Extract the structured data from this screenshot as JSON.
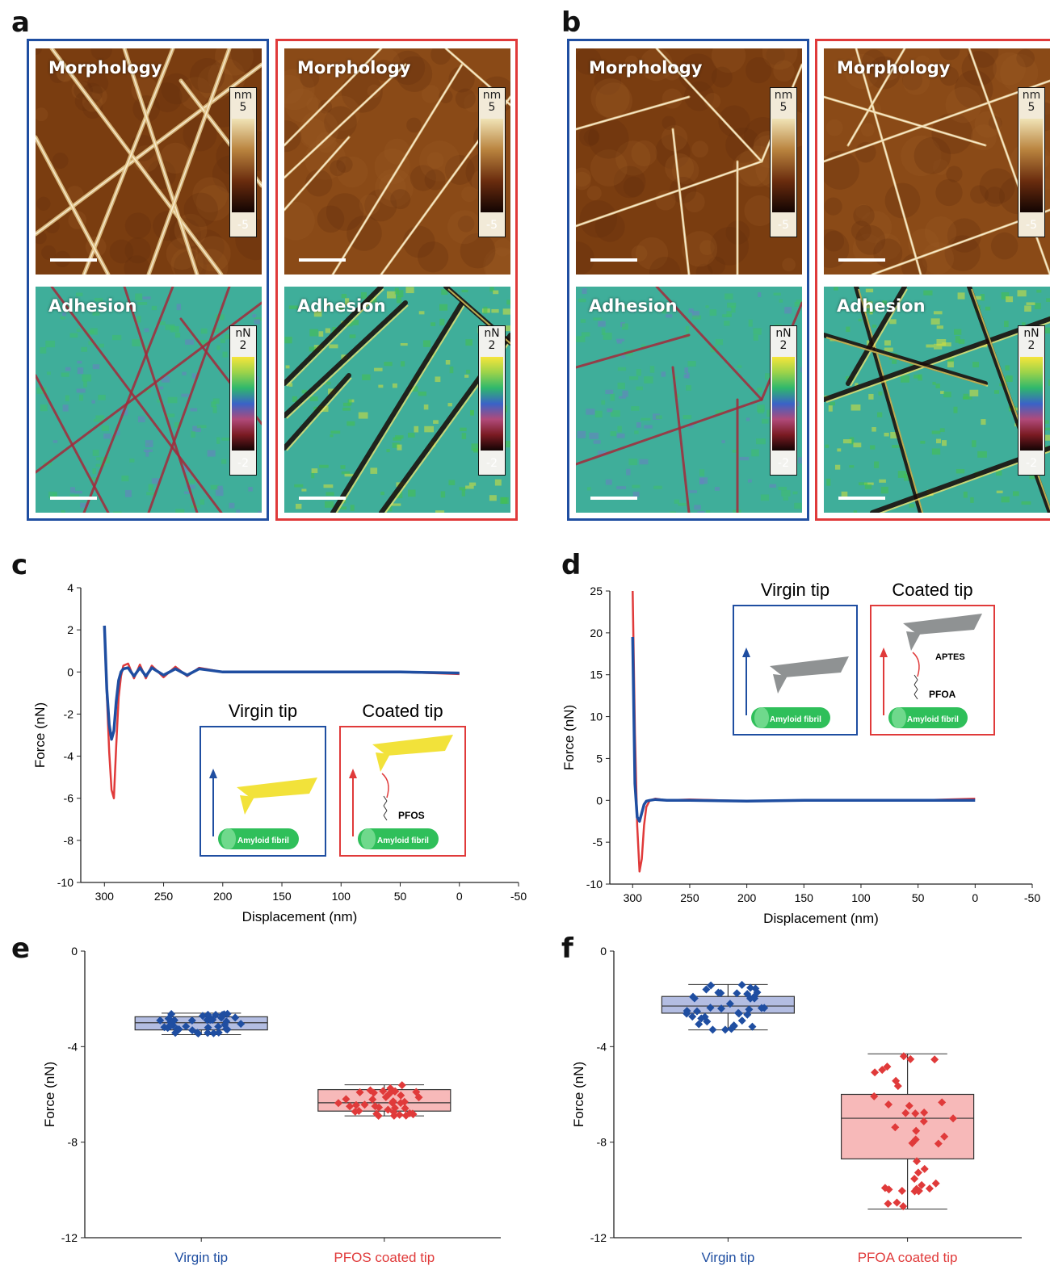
{
  "panels": {
    "a": "a",
    "b": "b",
    "c": "c",
    "d": "d",
    "e": "e",
    "f": "f"
  },
  "afm": {
    "morphology_label": "Morphology",
    "adhesion_label": "Adhesion",
    "morph_cbar": {
      "unit": "nm",
      "top": "5",
      "bottom": "-5"
    },
    "adh_cbar": {
      "unit": "nN",
      "top": "2",
      "bottom": "-2"
    }
  },
  "insets": {
    "virgin_tip": "Virgin tip",
    "coated_tip": "Coated tip",
    "amyloid_fibril": "Amyloid fibril",
    "pfos": "PFOS",
    "pfoa": "PFOA",
    "aptes": "APTES"
  },
  "colors": {
    "blue": "#1f4ea1",
    "red": "#e03a3a",
    "fibril_green": "#2fbf5a",
    "tip_yellow": "#f2e23a",
    "tip_grey": "#8f9293"
  },
  "chart_data": [
    {
      "id": "c",
      "type": "line",
      "xlabel": "Displacement (nm)",
      "ylabel": "Force (nN)",
      "xlim": [
        320,
        -50
      ],
      "ylim": [
        -10,
        4
      ],
      "xticks": [
        300,
        250,
        200,
        150,
        100,
        50,
        0,
        -50
      ],
      "yticks": [
        4,
        2,
        0,
        -2,
        -4,
        -6,
        -8,
        -10
      ],
      "series": [
        {
          "color": "#e03a3a",
          "x": [
            300,
            298,
            296,
            294,
            292,
            290,
            288,
            286,
            284,
            280,
            275,
            270,
            265,
            260,
            250,
            240,
            230,
            220,
            200,
            150,
            100,
            50,
            0
          ],
          "y": [
            2.0,
            -1.0,
            -3.8,
            -5.6,
            -6.0,
            -3.5,
            -1.2,
            -0.2,
            0.3,
            0.4,
            -0.3,
            0.35,
            -0.3,
            0.3,
            -0.25,
            0.25,
            -0.2,
            0.2,
            0.0,
            0.0,
            0.0,
            0.0,
            -0.1
          ]
        },
        {
          "color": "#1f4ea1",
          "x": [
            300,
            298,
            296,
            294,
            292,
            290,
            288,
            286,
            284,
            280,
            275,
            270,
            265,
            260,
            250,
            240,
            230,
            220,
            200,
            150,
            100,
            50,
            0
          ],
          "y": [
            2.2,
            -0.8,
            -2.5,
            -3.2,
            -2.8,
            -1.4,
            -0.4,
            0.0,
            0.15,
            0.2,
            -0.2,
            0.2,
            -0.2,
            0.2,
            -0.15,
            0.15,
            -0.15,
            0.15,
            0.0,
            0.0,
            0.0,
            0.0,
            -0.05
          ]
        }
      ]
    },
    {
      "id": "d",
      "type": "line",
      "xlabel": "Displacement (nm)",
      "ylabel": "Force (nN)",
      "xlim": [
        320,
        -50
      ],
      "ylim": [
        -10,
        25
      ],
      "xticks": [
        300,
        250,
        200,
        150,
        100,
        50,
        0,
        -50
      ],
      "yticks": [
        25,
        20,
        15,
        10,
        5,
        0,
        -5,
        -10
      ],
      "series": [
        {
          "color": "#e03a3a",
          "x": [
            300,
            298,
            296,
            294,
            292,
            290,
            288,
            285,
            280,
            270,
            250,
            200,
            150,
            100,
            50,
            0
          ],
          "y": [
            25,
            8,
            -3,
            -8.5,
            -7.0,
            -3.0,
            -0.8,
            0.0,
            0.2,
            0.0,
            0.1,
            -0.1,
            0.0,
            0.0,
            0.0,
            0.2
          ]
        },
        {
          "color": "#1f4ea1",
          "x": [
            300,
            298,
            296,
            294,
            292,
            290,
            288,
            285,
            280,
            270,
            250,
            200,
            150,
            100,
            50,
            0
          ],
          "y": [
            19.5,
            2,
            -2.0,
            -2.5,
            -1.5,
            -0.5,
            -0.1,
            0.0,
            0.1,
            0.0,
            0.0,
            -0.1,
            0.0,
            0.0,
            0.0,
            0.0
          ]
        }
      ]
    },
    {
      "id": "e",
      "type": "box",
      "ylabel": "Force (nN)",
      "ylim": [
        -12,
        0
      ],
      "yticks": [
        0,
        -4,
        -8,
        -12
      ],
      "categories": [
        "Virgin tip",
        "PFOS coated tip"
      ],
      "boxes": [
        {
          "color": "#1f4ea1",
          "fill": "#b3bde2",
          "min": -3.5,
          "q1": -3.3,
          "median": -3.0,
          "q3": -2.75,
          "max": -2.6
        },
        {
          "color": "#e03a3a",
          "fill": "#f7b9b9",
          "min": -6.9,
          "q1": -6.7,
          "median": -6.35,
          "q3": -5.8,
          "max": -5.6
        }
      ]
    },
    {
      "id": "f",
      "type": "box",
      "ylabel": "Force (nN)",
      "ylim": [
        -12,
        0
      ],
      "yticks": [
        0,
        -4,
        -8,
        -12
      ],
      "categories": [
        "Virgin tip",
        "PFOA coated tip"
      ],
      "boxes": [
        {
          "color": "#1f4ea1",
          "fill": "#b3bde2",
          "min": -3.3,
          "q1": -2.6,
          "median": -2.3,
          "q3": -1.9,
          "max": -1.4
        },
        {
          "color": "#e03a3a",
          "fill": "#f7b9b9",
          "min": -10.8,
          "q1": -8.7,
          "median": -7.0,
          "q3": -6.0,
          "max": -4.3
        }
      ]
    }
  ]
}
